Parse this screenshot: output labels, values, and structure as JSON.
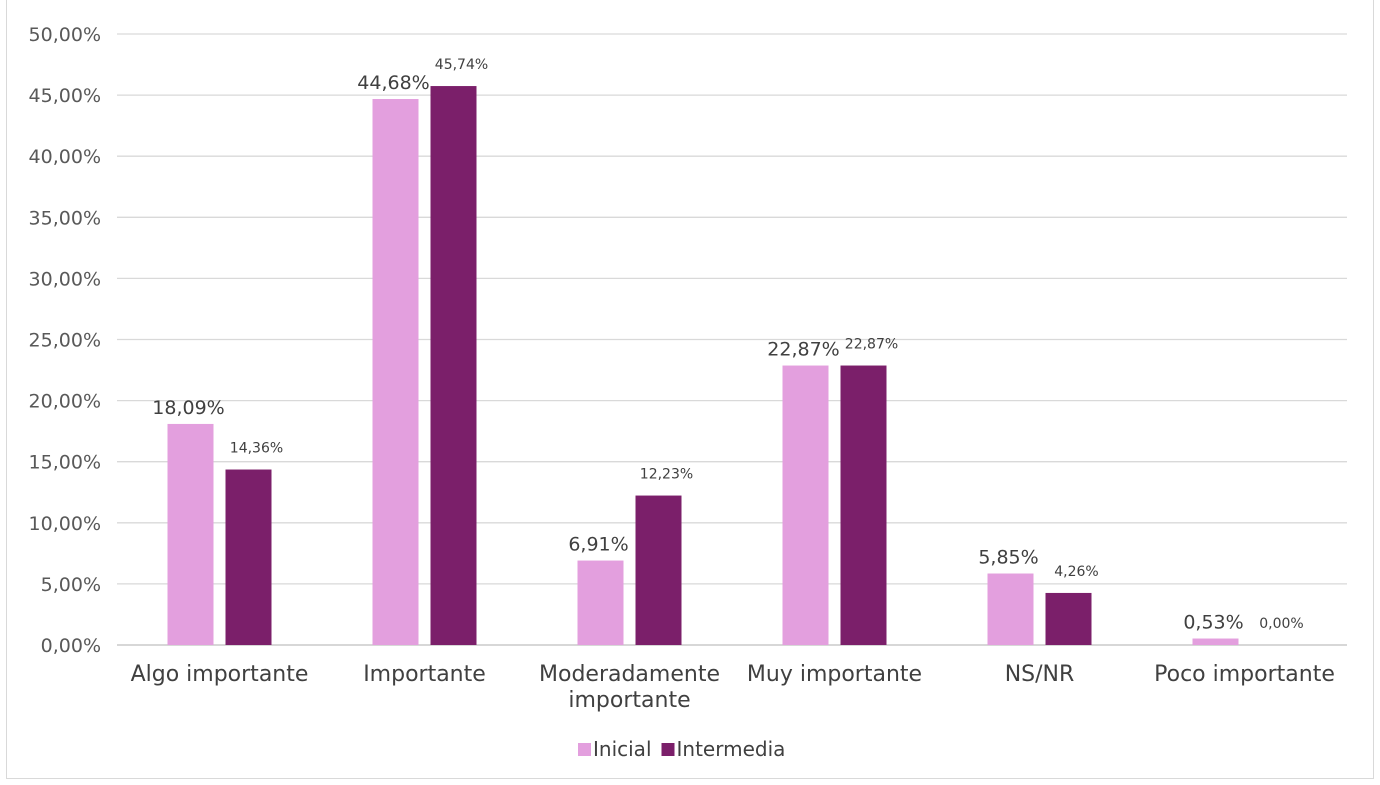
{
  "chart_data": {
    "type": "bar",
    "title": "",
    "xlabel": "",
    "ylabel": "",
    "categories": [
      [
        "Algo importante"
      ],
      [
        "Importante"
      ],
      [
        "Moderadamente",
        "importante"
      ],
      [
        "Muy importante"
      ],
      [
        "NS/NR"
      ],
      [
        "Poco importante"
      ]
    ],
    "series": [
      {
        "name": "Inicial",
        "color": "#e39fde",
        "values": [
          18.09,
          44.68,
          6.91,
          22.87,
          5.85,
          0.53
        ],
        "labels": [
          "18,09%",
          "44,68%",
          "6,91%",
          "22,87%",
          "5,85%",
          "0,53%"
        ]
      },
      {
        "name": "Intermedia",
        "color": "#7b1f6a",
        "values": [
          14.36,
          45.74,
          12.23,
          22.87,
          4.26,
          0.0
        ],
        "labels": [
          "14,36%",
          "45,74%",
          "12,23%",
          "22,87%",
          "4,26%",
          "0,00%"
        ]
      }
    ],
    "ylim": [
      0,
      50
    ],
    "yticks": [
      "0,00%",
      "5,00%",
      "10,00%",
      "15,00%",
      "20,00%",
      "25,00%",
      "30,00%",
      "35,00%",
      "40,00%",
      "45,00%",
      "50,00%"
    ],
    "grid": true,
    "legend_position": "bottom"
  }
}
